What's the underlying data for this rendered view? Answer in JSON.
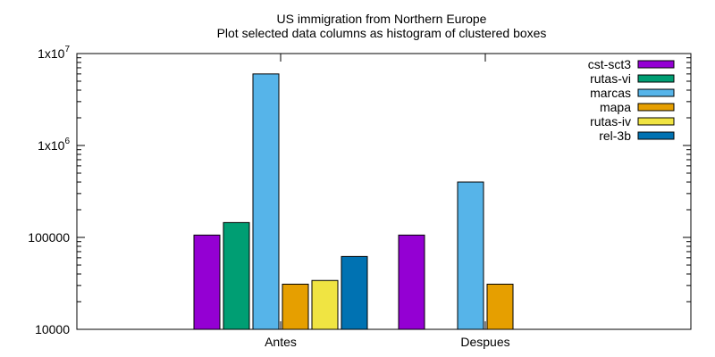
{
  "chart_data": {
    "type": "bar",
    "title": "US immigration from Northern Europe",
    "subtitle": "Plot selected data columns as histogram of clustered boxes",
    "xlabel": "",
    "ylabel": "",
    "y_scale": "log",
    "ylim": [
      10000,
      10000000
    ],
    "y_ticks": [
      10000,
      100000,
      1000000,
      10000000
    ],
    "y_tick_labels": [
      {
        "base": "10000",
        "sup": ""
      },
      {
        "base": "100000",
        "sup": ""
      },
      {
        "base": "1x10",
        "sup": "6"
      },
      {
        "base": "1x10",
        "sup": "7"
      }
    ],
    "categories": [
      "Antes",
      "Despues"
    ],
    "grid": false,
    "legend_position": "top-right",
    "series": [
      {
        "name": "cst-sct3",
        "color": "#9400d3",
        "values": [
          106000,
          106000
        ]
      },
      {
        "name": "rutas-vi",
        "color": "#009e73",
        "values": [
          145000,
          null
        ]
      },
      {
        "name": "marcas",
        "color": "#56b4e9",
        "values": [
          6000000,
          400000
        ]
      },
      {
        "name": "mapa",
        "color": "#e69f00",
        "values": [
          31000,
          31000
        ]
      },
      {
        "name": "rutas-iv",
        "color": "#f0e442",
        "values": [
          34000,
          null
        ]
      },
      {
        "name": "rel-3b",
        "color": "#0072b2",
        "values": [
          62000,
          null
        ]
      }
    ]
  }
}
